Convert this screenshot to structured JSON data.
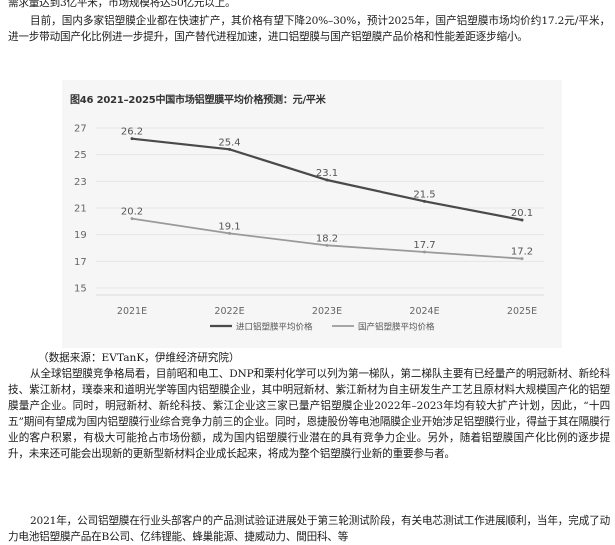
{
  "paragraphs": {
    "top_partial": "需求量达到3亿平米，市场规模将达50亿元以上。",
    "p1": "目前，国内多家铝塑膜企业都在快速扩产，其价格有望下降20%–30%，预计2025年，国产铝塑膜市场均价约17.2元/平米，进一步带动国产化比例进一步提升，国产替代进程加速，进口铝塑膜与国产铝塑膜产品价格和性能差距逐步缩小。",
    "source": "（数据来源：EVTanK，伊维经济研究院）",
    "p2": "从全球铝塑膜竞争格局看，目前昭和电工、DNP和栗村化学可以列为第一梯队，第二梯队主要有已经量产的明冠新材、新纶科技、紫江新材，璞泰来和道明光学等国内铝塑膜企业，其中明冠新材、紫江新材为自主研发生产工艺且原材料大规模国产化的铝塑膜量产企业。同时，明冠新材、新纶科技、紫江企业这三家已量产铝塑膜企业2022年–2023年均有较大扩产计划，因此，“十四五”期间有望成为国内铝塑膜行业综合竞争力前三的企业。同时，恩捷股份等电池隔膜企业开始涉足铝塑膜行业，得益于其在隔膜行业的客户积累，有极大可能抢占市场份额，成为国内铝塑膜行业潜在的具有竞争力企业。另外，随着铝塑膜国产化比例的逐步提升，未来还可能会出现新的更新型新材料企业成长起来，将成为整个铝塑膜行业新的重要参与者。",
    "p3": "2021年，公司铝塑膜在行业头部客户的产品测试验证进展处于第三轮测试阶段，有关电芯测试工作进展顺利，当年，完成了动力电池铝塑膜产品在B公司、亿纬锂能、蜂巢能源、捷威动力、間田科、等"
  },
  "chart_data": {
    "type": "line",
    "title": "图46 2021–2025中国市场铝塑膜平均价格预测：元/平米",
    "categories": [
      "2021E",
      "2022E",
      "2023E",
      "2024E",
      "2025E"
    ],
    "yticks": [
      15,
      17,
      19,
      21,
      23,
      25,
      27
    ],
    "ylim": [
      15,
      27
    ],
    "grid": true,
    "legend_position": "bottom",
    "series": [
      {
        "name": "进口铝塑膜平均价格",
        "values": [
          26.2,
          25.4,
          23.1,
          21.5,
          20.1
        ],
        "labels": [
          "26.2",
          "25.4",
          "23.1",
          "21.5",
          "20.1"
        ],
        "color": "#4a4a4a"
      },
      {
        "name": "国产铝塑膜平均价格",
        "values": [
          20.2,
          19.1,
          18.2,
          17.7,
          17.2
        ],
        "labels": [
          "20.2",
          "19.1",
          "18.2",
          "17.7",
          "17.2"
        ],
        "color": "#9a9a9a"
      }
    ]
  }
}
